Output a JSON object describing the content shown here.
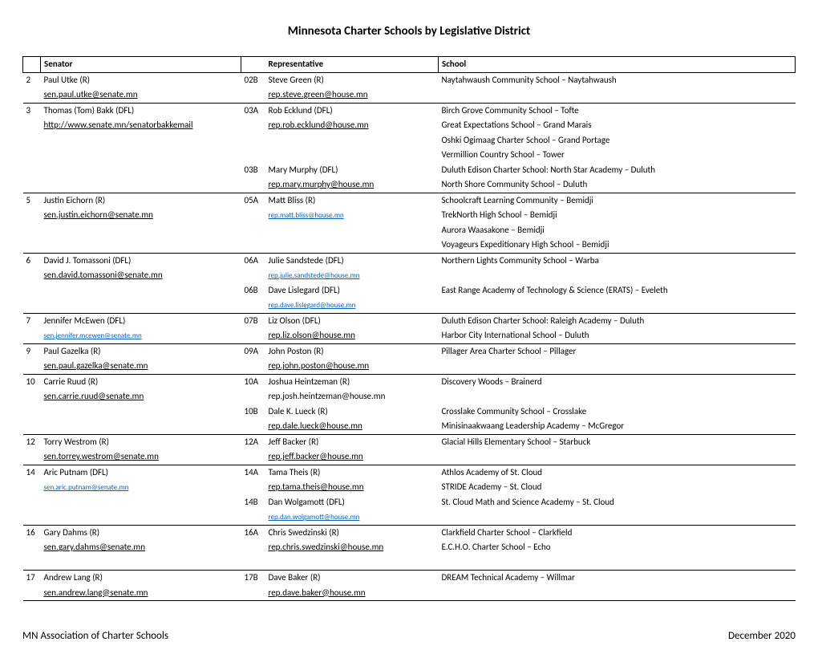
{
  "title": "Minnesota Charter Schools by Legislative District",
  "headers": {
    "senator": "Senator",
    "representative": "Representative",
    "school": "School"
  },
  "footer_left": "MN Association of Charter Schools",
  "footer_right": "December 2020",
  "groups": [
    {
      "district": "2",
      "senator": "Paul Utke (R)",
      "senator_email": "sen.paul.utke@senate.mn",
      "senator_email_class": "u",
      "subs": [
        {
          "dist": "02B",
          "rep": "Steve Green (R)",
          "rep_email": "rep.steve.green@house.mn",
          "rep_email_class": "u",
          "schools": [
            "Naytahwaush Community School – Naytahwaush"
          ]
        }
      ]
    },
    {
      "district": "3",
      "senator": "Thomas (Tom) Bakk (DFL)",
      "senator_email": "http://www.senate.mn/senatorbakkemail",
      "senator_email_class": "u",
      "subs": [
        {
          "dist": "03A",
          "rep": "Rob Ecklund (DFL)",
          "rep_email": "rep.rob.ecklund@house.mn",
          "rep_email_class": "u",
          "schools": [
            "Birch Grove Community School – Tofte",
            "Great Expectations School – Grand Marais",
            "Oshki Ogimaag Charter School – Grand Portage",
            "Vermillion Country School – Tower"
          ]
        },
        {
          "dist": "03B",
          "rep": "Mary Murphy (DFL)",
          "rep_email": "rep.mary.murphy@house.mn",
          "rep_email_class": "u",
          "schools": [
            "Duluth Edison Charter School: North Star Academy – Duluth",
            "North Shore Community School – Duluth"
          ]
        }
      ]
    },
    {
      "district": "5",
      "senator": "Justin Eichorn (R)",
      "senator_email": "sen.justin.eichorn@senate.mn",
      "senator_email_class": "u",
      "subs": [
        {
          "dist": "05A",
          "rep": "Matt Bliss (R)",
          "rep_email": "rep.matt.bliss@house.mn",
          "rep_email_class": "u blue sm",
          "schools": [
            "Schoolcraft Learning Community – Bemidji",
            "TrekNorth High School – Bemidji",
            "Aurora Waasakone – Bemidji",
            "Voyageurs Expeditionary High School – Bemidji"
          ]
        }
      ]
    },
    {
      "district": "6",
      "senator": "David J. Tomassoni (DFL)",
      "senator_email": "sen.david.tomassoni@senate.mn",
      "senator_email_class": "u",
      "subs": [
        {
          "dist": "06A",
          "rep": "Julie Sandstede (DFL)",
          "rep_email": "rep.julie.sandstede@house.mn",
          "rep_email_class": "u blue sm",
          "schools": [
            "Northern Lights Community School – Warba"
          ]
        },
        {
          "dist": "06B",
          "rep": "Dave Lislegard (DFL)",
          "rep_email": "rep.dave.lislegard@house.mn",
          "rep_email_class": "u blue sm",
          "schools": [
            "East Range Academy of Technology & Science (ERATS) – Eveleth"
          ]
        }
      ]
    },
    {
      "district": "7",
      "senator": "Jennifer McEwen (DFL)",
      "senator_email": "sen.jennifer.mcewen@senate.mn",
      "senator_email_class": "u blue sm",
      "subs": [
        {
          "dist": "07B",
          "rep": "Liz Olson (DFL)",
          "rep_email": "rep.liz.olson@house.mn",
          "rep_email_class": "u",
          "schools": [
            "Duluth Edison Charter School: Raleigh Academy – Duluth",
            "Harbor City International School – Duluth"
          ]
        }
      ]
    },
    {
      "district": "9",
      "senator": "Paul Gazelka (R)",
      "senator_email": "sen.paul.gazelka@senate.mn",
      "senator_email_class": "u",
      "subs": [
        {
          "dist": "09A",
          "rep": "John Poston (R)",
          "rep_email": "rep.john.poston@house.mn",
          "rep_email_class": "u",
          "schools": [
            "Pillager Area Charter School – Pillager"
          ]
        }
      ]
    },
    {
      "district": "10",
      "senator": "Carrie Ruud (R)",
      "senator_email": "sen.carrie.ruud@senate.mn",
      "senator_email_class": "u",
      "subs": [
        {
          "dist": "10A",
          "rep": "Joshua Heintzeman (R)",
          "rep_email": "rep.josh.heintzeman@house.mn",
          "rep_email_class": "",
          "schools": [
            "Discovery Woods – Brainerd"
          ]
        },
        {
          "dist": "10B",
          "rep": "Dale K. Lueck (R)",
          "rep_email": "rep.dale.lueck@house.mn",
          "rep_email_class": "u",
          "schools": [
            "Crosslake Community School – Crosslake",
            "Minisinaakwaang Leadership Academy – McGregor"
          ]
        }
      ]
    },
    {
      "district": "12",
      "senator": "Torry Westrom (R)",
      "senator_email": "sen.torrey.westrom@senate.mn",
      "senator_email_class": "u",
      "subs": [
        {
          "dist": "12A",
          "rep": "Jeff Backer (R)",
          "rep_email": "rep.jeff.backer@house.mn",
          "rep_email_class": "u",
          "schools": [
            "Glacial Hills Elementary School – Starbuck"
          ]
        }
      ]
    },
    {
      "district": "14",
      "senator": "Aric Putnam (DFL)",
      "senator_email": "sen.aric.putnam@senate.mn",
      "senator_email_class": "u blue sm",
      "subs": [
        {
          "dist": "14A",
          "rep": "Tama Theis (R)",
          "rep_email": "rep.tama.theis@house.mn",
          "rep_email_class": "u",
          "schools": [
            "Athlos Academy of St. Cloud",
            "STRIDE Academy – St. Cloud"
          ]
        },
        {
          "dist": "14B",
          "rep": " Dan Wolgamott (DFL)",
          "rep_email": "rep.dan.wolgamott@house.mn",
          "rep_email_class": "u blue sm",
          "schools": [
            "St. Cloud Math and Science Academy – St. Cloud"
          ]
        }
      ]
    },
    {
      "district": "16",
      "senator": "Gary Dahms (R)",
      "senator_email": "sen.gary.dahms@senate.mn",
      "senator_email_class": "u",
      "subs": [
        {
          "dist": "16A",
          "rep": "Chris Swedzinski (R)",
          "rep_email": "rep.chris.swedzinski@house.mn",
          "rep_email_class": "u",
          "schools": [
            "Clarkfield Charter School – Clarkfield",
            "E.C.H.O. Charter School – Echo",
            " "
          ]
        }
      ]
    },
    {
      "district": "17",
      "senator": "Andrew Lang (R)",
      "senator_email": "sen.andrew.lang@senate.mn",
      "senator_email_class": "u",
      "subs": [
        {
          "dist": "17B",
          "rep": "Dave Baker (R)",
          "rep_email": "rep.dave.baker@house.mn",
          "rep_email_class": "u",
          "schools": [
            "DREAM Technical Academy  – Willmar"
          ]
        }
      ]
    }
  ]
}
